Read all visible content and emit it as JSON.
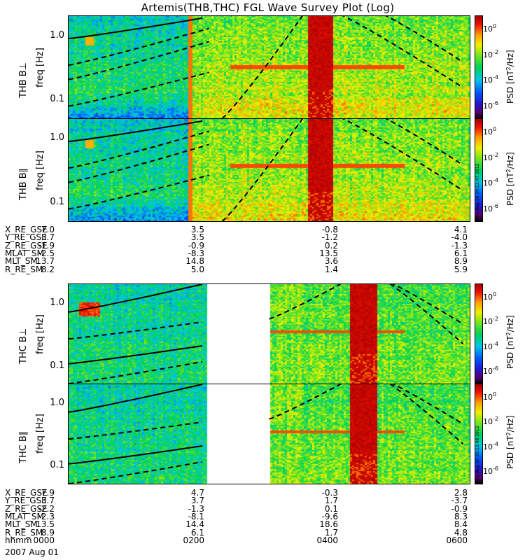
{
  "title": "Artemis(THB,THC) FGL Wave Survey Plot (Log)",
  "panels": [
    {
      "name": "thb-bperp",
      "label": "THB B⊥",
      "ylabel": "freq [Hz]",
      "stamp": ""
    },
    {
      "name": "thb-bpar",
      "label": "THB B∥",
      "ylabel": "freq [Hz]",
      "stamp": "Thu Aug 30 20:12:47 2012"
    },
    {
      "name": "thc-bperp",
      "label": "THC B⊥",
      "ylabel": "freq [Hz]",
      "stamp": ""
    },
    {
      "name": "thc-bpar",
      "label": "THC B∥",
      "ylabel": "freq [Hz]",
      "stamp": "Thu Aug 30 20:12:48 2012"
    }
  ],
  "yticks": [
    "1.0",
    "0.1"
  ],
  "colorbar": {
    "label_pre": "PSD [nT",
    "label_sup": "2",
    "label_post": "/Hz]",
    "ticks": [
      {
        "base": "10",
        "exp": "0"
      },
      {
        "base": "10",
        "exp": "-2"
      },
      {
        "base": "10",
        "exp": "-4"
      },
      {
        "base": "10",
        "exp": "-6"
      }
    ]
  },
  "ephem_thb": [
    {
      "label": "X_RE_GSE",
      "values": [
        "7.0",
        "3.5",
        "-0.8",
        "4.1"
      ]
    },
    {
      "label": "Y_RE_GSE",
      "values": [
        "3.7",
        "3.5",
        "-1.2",
        "-4.0"
      ]
    },
    {
      "label": "Z_RE_GSE",
      "values": [
        "-1.9",
        "-0.9",
        "0.2",
        "-1.3"
      ]
    },
    {
      "label": "MLAT_SM",
      "values": [
        "-2.5",
        "-8.3",
        "13.5",
        "6.1"
      ]
    },
    {
      "label": "MLT_SM",
      "values": [
        "13.7",
        "14.8",
        "3.6",
        "8.9"
      ]
    },
    {
      "label": "R_RE_SM",
      "values": [
        "8.2",
        "5.0",
        "1.4",
        "5.9"
      ]
    }
  ],
  "ephem_thc": [
    {
      "label": "X_RE_GSE",
      "values": [
        "7.9",
        "4.7",
        "-0.3",
        "2.8"
      ]
    },
    {
      "label": "Y_RE_GSE",
      "values": [
        "3.7",
        "3.7",
        "1.7",
        "-3.7"
      ]
    },
    {
      "label": "Z_RE_GSE",
      "values": [
        "-2.2",
        "-1.3",
        "0.1",
        "-0.9"
      ]
    },
    {
      "label": "MLAT_SM",
      "values": [
        "-2.3",
        "-8.1",
        "-9.6",
        "8.3"
      ]
    },
    {
      "label": "MLT_SM",
      "values": [
        "13.5",
        "14.4",
        "18.6",
        "8.4"
      ]
    },
    {
      "label": "R_RE_SM",
      "values": [
        "8.9",
        "6.1",
        "1.7",
        "4.8"
      ]
    },
    {
      "label": "hhmm",
      "values": [
        "0000",
        "0200",
        "0400",
        "0600"
      ]
    }
  ],
  "date": "2007 Aug 01",
  "chart_data": {
    "type": "heatmap",
    "title": "Artemis(THB,THC) FGL Wave Survey Plot (Log)",
    "x_label": "hhmm",
    "x_ticks": [
      "0000",
      "0200",
      "0400",
      "0600"
    ],
    "x_range_hours": [
      0,
      6
    ],
    "y_label": "freq [Hz]",
    "y_scale": "log",
    "y_range": [
      0.05,
      2.0
    ],
    "colorbar": {
      "label": "PSD [nT^2/Hz]",
      "scale": "log",
      "range": [
        1e-07,
        10.0
      ],
      "ticks": [
        1,
        0.01,
        0.0001,
        1e-06
      ],
      "colormap": "rainbow (black-blue-green-yellow-red)"
    },
    "panels": [
      {
        "name": "THB B⊥",
        "probe": "THB",
        "component": "perp",
        "data_gaps_hours": [],
        "saturated_band_hours": [
          3.55,
          3.95
        ],
        "bright_onset_hour": 1.8,
        "line_freq_hz": 0.32
      },
      {
        "name": "THB B∥",
        "probe": "THB",
        "component": "par",
        "data_gaps_hours": [],
        "saturated_band_hours": [
          3.55,
          3.95
        ],
        "bright_onset_hour": 1.8,
        "line_freq_hz": 0.38
      },
      {
        "name": "THC B⊥",
        "probe": "THC",
        "component": "perp",
        "data_gaps_hours": [
          [
            2.05,
            3.0
          ]
        ],
        "saturated_band_hours": [
          4.2,
          4.6
        ],
        "line_freq_hz": 0.35
      },
      {
        "name": "THC B∥",
        "probe": "THC",
        "component": "par",
        "data_gaps_hours": [
          [
            2.05,
            3.0
          ]
        ],
        "saturated_band_hours": [
          4.2,
          4.6
        ],
        "line_freq_hz": 0.35
      }
    ],
    "ephemeris": {
      "THB": {
        "X_RE_GSE": [
          7.0,
          3.5,
          -0.8,
          4.1
        ],
        "Y_RE_GSE": [
          3.7,
          3.5,
          -1.2,
          -4.0
        ],
        "Z_RE_GSE": [
          -1.9,
          -0.9,
          0.2,
          -1.3
        ],
        "MLAT_SM": [
          -2.5,
          -8.3,
          13.5,
          6.1
        ],
        "MLT_SM": [
          13.7,
          14.8,
          3.6,
          8.9
        ],
        "R_RE_SM": [
          8.2,
          5.0,
          1.4,
          5.9
        ]
      },
      "THC": {
        "X_RE_GSE": [
          7.9,
          4.7,
          -0.3,
          2.8
        ],
        "Y_RE_GSE": [
          3.7,
          3.7,
          1.7,
          -3.7
        ],
        "Z_RE_GSE": [
          -2.2,
          -1.3,
          0.1,
          -0.9
        ],
        "MLAT_SM": [
          -2.3,
          -8.1,
          -9.6,
          8.3
        ],
        "MLT_SM": [
          13.5,
          14.4,
          18.6,
          8.4
        ],
        "R_RE_SM": [
          8.9,
          6.1,
          1.7,
          4.8
        ]
      }
    }
  }
}
